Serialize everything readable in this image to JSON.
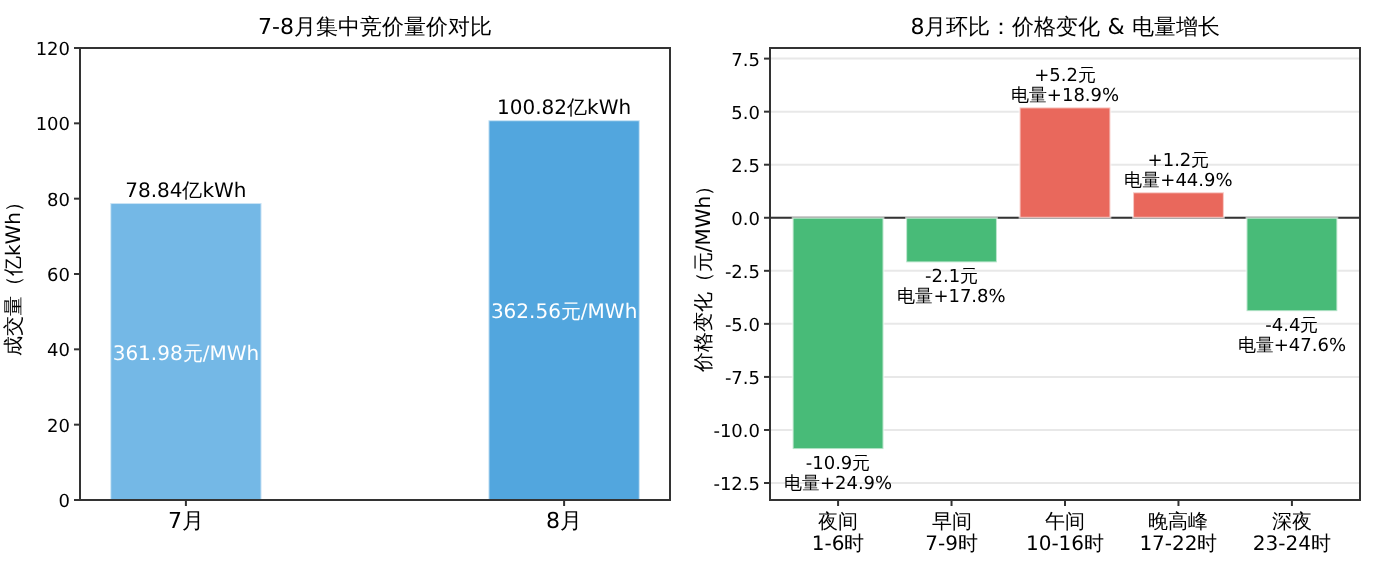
{
  "chart_data": [
    {
      "type": "bar",
      "title": "7-8月集中竞价量价对比",
      "ylabel": "成交量（亿kWh）",
      "categories": [
        "7月",
        "8月"
      ],
      "values": [
        78.84,
        100.82
      ],
      "colors": [
        "#74b8e6",
        "#52a6de"
      ],
      "value_labels": [
        "78.84亿kWh",
        "100.82亿kWh"
      ],
      "ylim": [
        0,
        120
      ],
      "yticks": [
        0,
        20,
        40,
        60,
        80,
        100,
        120
      ],
      "annotations": [
        "361.98元/MWh",
        "362.56元/MWh"
      ]
    },
    {
      "type": "bar",
      "title": "8月环比：价格变化 & 电量增长",
      "ylabel": "价格变化（元/MWh）",
      "categories": [
        "夜间\n1-6时",
        "早间\n7-9时",
        "午间\n10-16时",
        "晚高峰\n17-22时",
        "深夜\n23-24时"
      ],
      "values": [
        -10.9,
        -2.1,
        5.2,
        1.2,
        -4.4
      ],
      "colors": [
        "#48bb78",
        "#48bb78",
        "#e9685c",
        "#e9685c",
        "#48bb78"
      ],
      "value_labels": [
        "-10.9元",
        "-2.1元",
        "+5.2元",
        "+1.2元",
        "-4.4元"
      ],
      "annotations": [
        {
          "text": "电量+24.9%",
          "x": "夜间\n1-6时",
          "y": -10.9
        },
        {
          "text": "电量+17.8%",
          "x": "早间\n7-9时",
          "y": -2.1
        },
        {
          "text": "电量+18.9%",
          "x": "午间\n10-16时",
          "y": 5.2
        },
        {
          "text": "电量+44.9%",
          "x": "晚高峰\n17-22时",
          "y": 1.2
        },
        {
          "text": "电量+47.6%",
          "x": "深夜\n23-24时",
          "y": -4.4
        }
      ],
      "ylim": [
        -13.3,
        8.0
      ],
      "yticks": [
        {
          "value": -12.5,
          "label": "-12.5"
        },
        {
          "value": -10,
          "label": "-10.0"
        },
        {
          "value": -7.5,
          "label": "-7.5"
        },
        {
          "value": -5,
          "label": "-5.0"
        },
        {
          "value": -2.5,
          "label": "-2.5"
        },
        {
          "value": 0,
          "label": "0.0"
        },
        {
          "value": 2.5,
          "label": "2.5"
        },
        {
          "value": 5,
          "label": "5.0"
        },
        {
          "value": 7.5,
          "label": "7.5"
        }
      ],
      "grid": "y",
      "ref_lines": [
        {
          "axis": "y",
          "value": 0,
          "color": "#333333"
        }
      ]
    }
  ]
}
